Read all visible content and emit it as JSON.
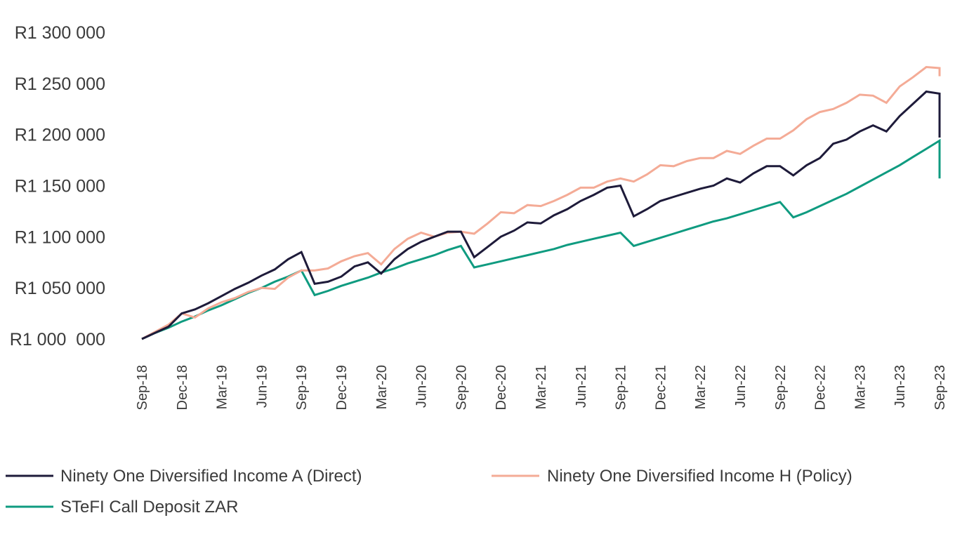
{
  "chart_data": {
    "type": "line",
    "title": "",
    "xlabel": "",
    "ylabel": "",
    "ylim": [
      1000000,
      1300000
    ],
    "grid": false,
    "legend_position": "bottom",
    "y_ticks": [
      1000000,
      1050000,
      1100000,
      1150000,
      1200000,
      1250000,
      1300000
    ],
    "y_tick_labels": [
      "R1 000  000",
      "R1 050 000",
      "R1 100 000",
      "R1 150 000",
      "R1 200 000",
      "R1 250 000",
      "R1 300 000"
    ],
    "x_tick_labels": [
      "Sep-18",
      "Dec-18",
      "Mar-19",
      "Jun-19",
      "Sep-19",
      "Dec-19",
      "Mar-20",
      "Jun-20",
      "Sep-20",
      "Dec-20",
      "Mar-21",
      "Jun-21",
      "Sep-21",
      "Dec-21",
      "Mar-22",
      "Jun-22",
      "Sep-22",
      "Dec-22",
      "Mar-23",
      "Jun-23",
      "Sep-23"
    ],
    "x_note": "monthly observations Sep-18 to Sep-23; final value is a second Sep-23 reading",
    "series": [
      {
        "name": "Ninety One Diversified Income A (Direct)",
        "color": "#1e1b3a",
        "values": [
          1000000,
          1006000,
          1012000,
          1025000,
          1029000,
          1035000,
          1042000,
          1049000,
          1055000,
          1062000,
          1068000,
          1078000,
          1085000,
          1054000,
          1056000,
          1061000,
          1071000,
          1075000,
          1064000,
          1078000,
          1088000,
          1095000,
          1100000,
          1105000,
          1105000,
          1080000,
          1090000,
          1100000,
          1106000,
          1114000,
          1113000,
          1121000,
          1127000,
          1135000,
          1141000,
          1148000,
          1150000,
          1120000,
          1127000,
          1135000,
          1139000,
          1143000,
          1147000,
          1150000,
          1157000,
          1153000,
          1162000,
          1169000,
          1169000,
          1160000,
          1170000,
          1177000,
          1191000,
          1195000,
          1203000,
          1209000,
          1203000,
          1218000,
          1230000,
          1242000,
          1240000,
          1197000
        ]
      },
      {
        "name": "Ninety One Diversified Income H (Policy)",
        "color": "#f4ab96",
        "values": [
          1000000,
          1007000,
          1014000,
          1025000,
          1021000,
          1030000,
          1036000,
          1040000,
          1046000,
          1050000,
          1049000,
          1060000,
          1067000,
          1067000,
          1069000,
          1076000,
          1081000,
          1084000,
          1073000,
          1088000,
          1098000,
          1104000,
          1100000,
          1104000,
          1105000,
          1103000,
          1113000,
          1124000,
          1123000,
          1131000,
          1130000,
          1135000,
          1141000,
          1148000,
          1148000,
          1154000,
          1157000,
          1154000,
          1161000,
          1170000,
          1169000,
          1174000,
          1177000,
          1177000,
          1184000,
          1181000,
          1189000,
          1196000,
          1196000,
          1204000,
          1215000,
          1222000,
          1225000,
          1231000,
          1239000,
          1238000,
          1231000,
          1247000,
          1256000,
          1266000,
          1265000,
          1257000
        ]
      },
      {
        "name": "STeFI Call Deposit ZAR",
        "color": "#0f9b80",
        "values": [
          1000000,
          1006000,
          1011000,
          1017000,
          1022000,
          1028000,
          1033000,
          1039000,
          1045000,
          1050000,
          1056000,
          1061000,
          1067000,
          1043000,
          1047000,
          1052000,
          1056000,
          1060000,
          1065000,
          1069000,
          1074000,
          1078000,
          1082000,
          1087000,
          1091000,
          1070000,
          1073000,
          1076000,
          1079000,
          1082000,
          1085000,
          1088000,
          1092000,
          1095000,
          1098000,
          1101000,
          1104000,
          1091000,
          1095000,
          1099000,
          1103000,
          1107000,
          1111000,
          1115000,
          1118000,
          1122000,
          1126000,
          1130000,
          1134000,
          1119000,
          1124000,
          1130000,
          1136000,
          1142000,
          1149000,
          1156000,
          1163000,
          1170000,
          1178000,
          1186000,
          1194000,
          1157000
        ]
      }
    ]
  }
}
